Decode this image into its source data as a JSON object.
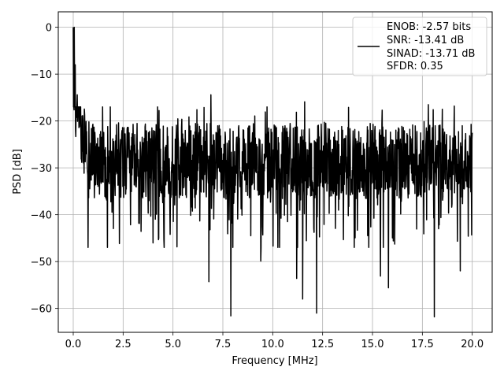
{
  "chart_data": {
    "type": "line",
    "xlabel": "Frequency [MHz]",
    "ylabel": "PSD [dB]",
    "xlim": [
      -0.75,
      21.0
    ],
    "ylim": [
      -65.1,
      3.3
    ],
    "x_ticks": [
      0.0,
      2.5,
      5.0,
      7.5,
      10.0,
      12.5,
      15.0,
      17.5,
      20.0
    ],
    "x_tick_labels": [
      "0.0",
      "2.5",
      "5.0",
      "7.5",
      "10.0",
      "12.5",
      "15.0",
      "17.5",
      "20.0"
    ],
    "y_ticks": [
      0,
      -10,
      -20,
      -30,
      -40,
      -50,
      -60
    ],
    "y_tick_labels": [
      "0",
      "−10",
      "−20",
      "−30",
      "−40",
      "−50",
      "−60"
    ],
    "grid": true,
    "legend_position": "top-right",
    "series": [
      {
        "legend": [
          "ENOB: -2.57 bits",
          "SNR: -13.41 dB",
          "SINAD: -13.71 dB",
          "SFDR: 0.35"
        ],
        "color": "#000000",
        "description_points": {
          "x_start": 0.0,
          "x_end": 20.0,
          "peak": [
            0.0,
            0.0
          ],
          "notable_minima": [
            [
              0.1,
              -41.8
            ],
            [
              6.8,
              -54.3
            ],
            [
              7.9,
              -61.6
            ],
            [
              9.4,
              -49.9
            ],
            [
              11.2,
              -53.6
            ],
            [
              11.5,
              -58.0
            ],
            [
              12.2,
              -61.0
            ],
            [
              15.4,
              -53.1
            ],
            [
              15.8,
              -55.6
            ],
            [
              18.1,
              -61.8
            ],
            [
              19.4,
              -52.0
            ],
            [
              19.8,
              -44.6
            ]
          ],
          "notable_maxima": [
            [
              0.05,
              0.0
            ],
            [
              0.1,
              -8.0
            ],
            [
              0.2,
              -14.4
            ],
            [
              6.9,
              -14.4
            ],
            [
              11.6,
              -15.9
            ],
            [
              13.8,
              -17.1
            ],
            [
              17.8,
              -16.5
            ],
            [
              18.5,
              -17.5
            ],
            [
              19.1,
              -16.8
            ]
          ]
        }
      }
    ]
  }
}
